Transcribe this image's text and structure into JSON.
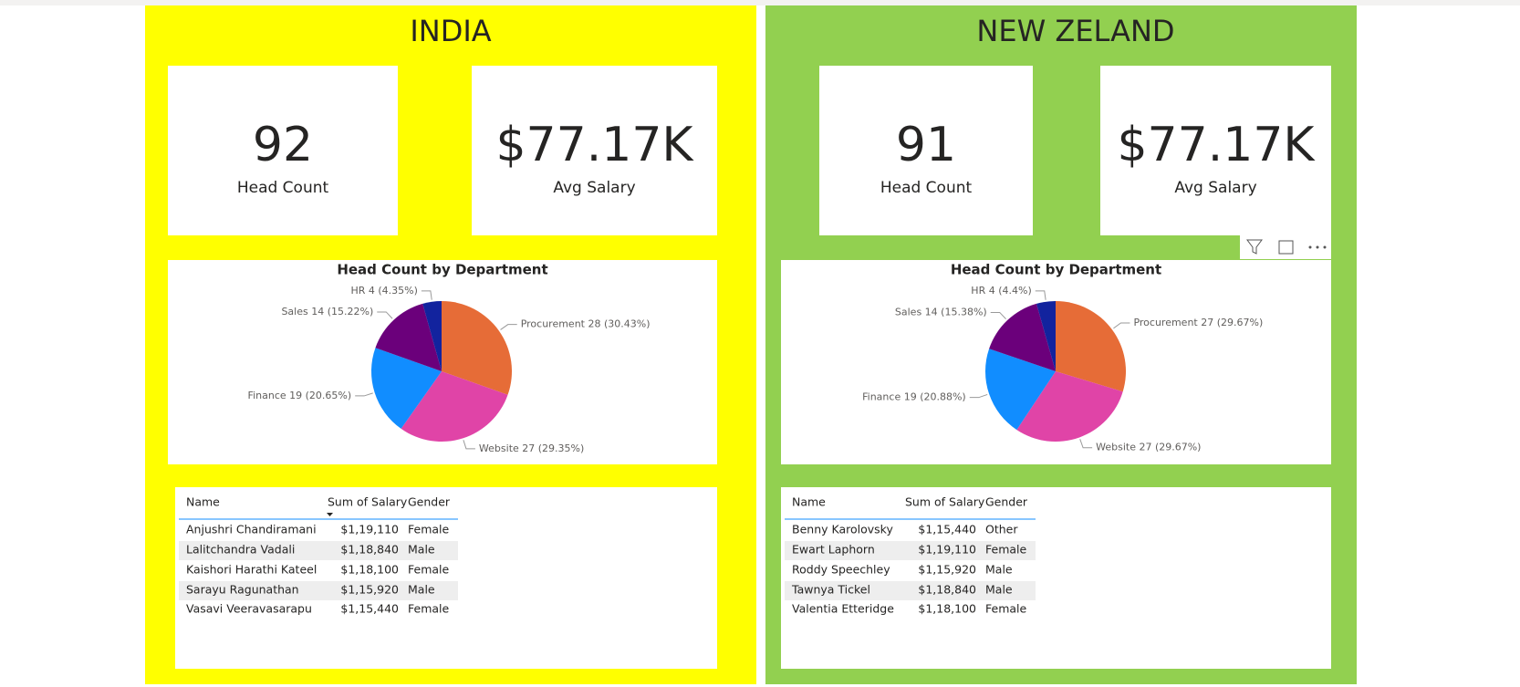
{
  "panels": [
    {
      "title": "INDIA",
      "cards": [
        {
          "value": "92",
          "label": "Head Count"
        },
        {
          "value": "$77.17K",
          "label": "Avg Salary"
        }
      ],
      "table": {
        "columns": [
          "Name",
          "Sum of Salary",
          "Gender"
        ],
        "rows": [
          [
            "Anjushri Chandiramani",
            "$1,19,110",
            "Female"
          ],
          [
            "Lalitchandra Vadali",
            "$1,18,840",
            "Male"
          ],
          [
            "Kaishori Harathi Kateel",
            "$1,18,100",
            "Female"
          ],
          [
            "Sarayu Ragunathan",
            "$1,15,920",
            "Male"
          ],
          [
            "Vasavi Veeravasarapu",
            "$1,15,440",
            "Female"
          ]
        ]
      }
    },
    {
      "title": "NEW ZELAND",
      "cards": [
        {
          "value": "91",
          "label": "Head Count"
        },
        {
          "value": "$77.17K",
          "label": "Avg Salary"
        }
      ],
      "table": {
        "columns": [
          "Name",
          "Sum of Salary",
          "Gender"
        ],
        "rows": [
          [
            "Benny Karolovsky",
            "$1,15,440",
            "Other"
          ],
          [
            "Ewart Laphorn",
            "$1,19,110",
            "Female"
          ],
          [
            "Roddy Speechley",
            "$1,15,920",
            "Male"
          ],
          [
            "Tawnya Tickel",
            "$1,18,840",
            "Male"
          ],
          [
            "Valentia Etteridge",
            "$1,18,100",
            "Female"
          ]
        ]
      }
    }
  ],
  "chart_data": [
    {
      "type": "pie",
      "title": "Head Count by Department",
      "categories": [
        "Procurement",
        "Website",
        "Finance",
        "Sales",
        "HR"
      ],
      "values": [
        28,
        27,
        19,
        14,
        4
      ],
      "value_labels": [
        "Procurement 28 (30.43%)",
        "Website 27 (29.35%)",
        "Finance 19 (20.65%)",
        "Sales 14 (15.22%)",
        "HR 4 (4.35%)"
      ],
      "colors": [
        "#E66C37",
        "#E044A7",
        "#118DFF",
        "#6B007B",
        "#12239E"
      ]
    },
    {
      "type": "pie",
      "title": "Head Count by Department",
      "categories": [
        "Procurement",
        "Website",
        "Finance",
        "Sales",
        "HR"
      ],
      "values": [
        27,
        27,
        19,
        14,
        4
      ],
      "value_labels": [
        "Procurement 27 (29.67%)",
        "Website 27 (29.67%)",
        "Finance 19 (20.88%)",
        "Sales 14 (15.38%)",
        "HR 4 (4.4%)"
      ],
      "colors": [
        "#E66C37",
        "#E044A7",
        "#118DFF",
        "#6B007B",
        "#12239E"
      ]
    }
  ]
}
